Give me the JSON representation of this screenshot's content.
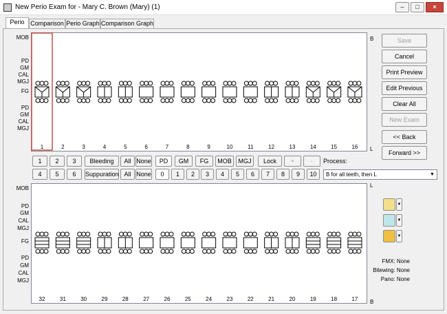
{
  "window": {
    "title": "New Perio Exam for - Mary C. Brown (Mary) (1)"
  },
  "tabs": [
    "Perio",
    "Comparison",
    "Perio Graph",
    "Comparison Graph"
  ],
  "maxillary": {
    "row_labels": [
      "MOB",
      "PD",
      "GM",
      "CAL",
      "MGJ",
      "FG",
      "PD",
      "GM",
      "CAL",
      "MGJ"
    ],
    "side_labels": [
      "B",
      "L"
    ],
    "teeth": [
      "1",
      "2",
      "3",
      "4",
      "5",
      "6",
      "7",
      "8",
      "9",
      "10",
      "11",
      "12",
      "13",
      "14",
      "15",
      "16"
    ]
  },
  "mandibular": {
    "row_labels": [
      "MOB",
      "PD",
      "GM",
      "CAL",
      "MGJ",
      "FG",
      "PD",
      "GM",
      "CAL",
      "MGJ"
    ],
    "side_labels": [
      "L",
      "B"
    ],
    "teeth": [
      "32",
      "31",
      "30",
      "29",
      "28",
      "27",
      "26",
      "25",
      "24",
      "23",
      "22",
      "21",
      "20",
      "19",
      "18",
      "17"
    ]
  },
  "buttons": [
    "Save",
    "Cancel",
    "Print Preview",
    "Edit Previous",
    "Clear All",
    "New Exam",
    "<< Back",
    "Forward >>"
  ],
  "controls": {
    "row1": [
      "1",
      "2",
      "3",
      "Bleeding",
      "All",
      "None",
      "PD",
      "GM",
      "FG",
      "MOB",
      "MGJ",
      "Lock",
      "+",
      "-"
    ],
    "row2": [
      "4",
      "5",
      "6",
      "Suppuration",
      "All",
      "None",
      "0",
      "1",
      "2",
      "3",
      "4",
      "5",
      "6",
      "7",
      "8",
      "9",
      "10"
    ],
    "process_label": "Process:",
    "process_value": "B for all teeth, then L"
  },
  "info": [
    "FMX: None",
    "Bitewing: None",
    "Pano: None"
  ]
}
